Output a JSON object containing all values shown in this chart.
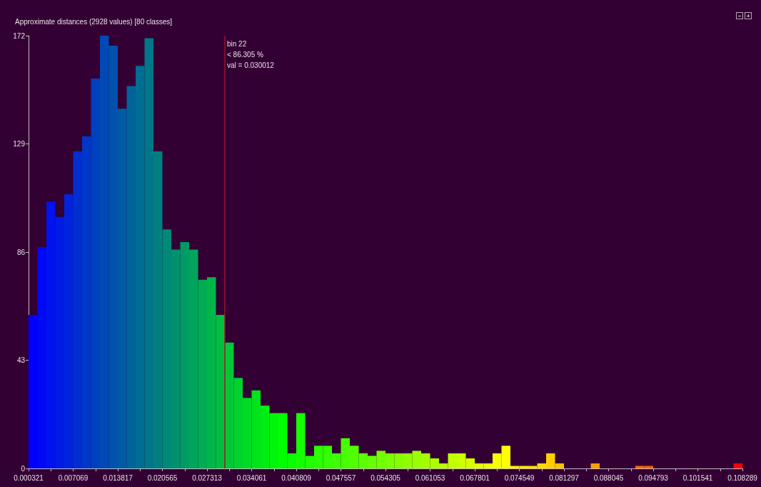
{
  "chart_data": {
    "type": "histogram",
    "title": "Approximate distances (2928 values) [80 classes]",
    "bins": [
      0.000321,
      0.001671,
      0.00302,
      0.00437,
      0.005719,
      0.007069,
      0.008419,
      0.009768,
      0.011118,
      0.012467,
      0.013817,
      0.015167,
      0.016516,
      0.017866,
      0.019215,
      0.020565,
      0.021915,
      0.023264,
      0.024614,
      0.025963,
      0.027313,
      0.028663,
      0.030012,
      0.031362,
      0.032711,
      0.034061,
      0.035411,
      0.03676,
      0.03811,
      0.039459,
      0.040809,
      0.042159,
      0.043508,
      0.044858,
      0.046207,
      0.047557,
      0.048907,
      0.050256,
      0.051606,
      0.052955,
      0.054305,
      0.055655,
      0.057004,
      0.058354,
      0.059703,
      0.061053,
      0.062403,
      0.063752,
      0.065102,
      0.066451,
      0.067801,
      0.069151,
      0.0705,
      0.07185,
      0.073199,
      0.074549,
      0.075899,
      0.077248,
      0.078598,
      0.079947,
      0.081297,
      0.082647,
      0.083996,
      0.085346,
      0.086695,
      0.088045,
      0.089395,
      0.090744,
      0.092094,
      0.093443,
      0.094793,
      0.096143,
      0.097492,
      0.098842,
      0.100191,
      0.101541,
      0.102891,
      0.10424,
      0.10559,
      0.106939,
      0.108289
    ],
    "values": [
      61,
      88,
      106,
      100,
      109,
      126,
      132,
      155,
      172,
      168,
      143,
      152,
      160,
      171,
      126,
      95,
      87,
      90,
      87,
      75,
      76,
      61,
      50,
      36,
      28,
      31,
      25,
      22,
      22,
      6,
      22,
      5,
      9,
      9,
      6,
      12,
      9,
      6,
      5,
      7,
      6,
      6,
      6,
      7,
      6,
      4,
      2,
      6,
      6,
      4,
      2,
      2,
      6,
      9,
      1,
      1,
      1,
      2,
      6,
      2,
      0,
      0,
      0,
      2,
      0,
      0,
      0,
      0,
      1,
      1,
      0,
      0,
      0,
      0,
      0,
      0,
      0,
      0,
      0,
      2
    ],
    "colors": [
      "#0000ff",
      "#0009f6",
      "#0012ed",
      "#001be4",
      "#0024db",
      "#002ed1",
      "#0037c8",
      "#0040bf",
      "#0049b6",
      "#0052ad",
      "#005ba4",
      "#00649b",
      "#006d92",
      "#007689",
      "#007f80",
      "#008976",
      "#00926d",
      "#009b64",
      "#00a45b",
      "#00ad52",
      "#00b649",
      "#00bf40",
      "#00c837",
      "#00d12e",
      "#00db24",
      "#00e41b",
      "#00ed12",
      "#00f609",
      "#00ff00",
      "#0aff00",
      "#14ff00",
      "#1fff00",
      "#29ff00",
      "#33ff00",
      "#3dff00",
      "#47ff00",
      "#52ff00",
      "#5cff00",
      "#66ff00",
      "#70ff00",
      "#7aff00",
      "#85ff00",
      "#8fff00",
      "#99ff00",
      "#a3ff00",
      "#adff00",
      "#b8ff00",
      "#c2ff00",
      "#ccff00",
      "#d6ff00",
      "#e0ff00",
      "#ebff00",
      "#f5ff00",
      "#ffff00",
      "#fff500",
      "#ffeb00",
      "#ffe200",
      "#ffd800",
      "#ffce00",
      "#ffc400",
      "#ffba00",
      "#ffb100",
      "#ffa700",
      "#ff9d00",
      "#ff9300",
      "#ff8900",
      "#ff8000",
      "#ff7600",
      "#ff6c00",
      "#ff6200",
      "#ff5800",
      "#ff4e00",
      "#ff4500",
      "#ff3b00",
      "#ff3100",
      "#ff2700",
      "#ff1d00",
      "#ff1400",
      "#ff0a00",
      "#ff0000"
    ],
    "xlim": [
      0.000321,
      0.108289
    ],
    "xticks": [
      0.000321,
      {
        "value": 0.003695,
        "label": null
      },
      0.007069,
      {
        "value": 0.010443,
        "label": null
      },
      0.013817,
      {
        "value": 0.017191,
        "label": null
      },
      0.020565,
      {
        "value": 0.023939,
        "label": null
      },
      0.027313,
      {
        "value": 0.030687,
        "label": null
      },
      0.034061,
      {
        "value": 0.037435,
        "label": null
      },
      0.040809,
      {
        "value": 0.044183,
        "label": null
      },
      0.047557,
      {
        "value": 0.050931,
        "label": null
      },
      0.054305,
      {
        "value": 0.057679,
        "label": null
      },
      0.061053,
      {
        "value": 0.064427,
        "label": null
      },
      0.067801,
      {
        "value": 0.071175,
        "label": null
      },
      0.074549,
      {
        "value": 0.077923,
        "label": null
      },
      0.081297,
      {
        "value": 0.084671,
        "label": null
      },
      0.088045,
      {
        "value": 0.091419,
        "label": null
      },
      0.094793,
      {
        "value": 0.098167,
        "label": null
      },
      0.101541,
      {
        "value": 0.104915,
        "label": null
      },
      0.108289
    ],
    "ylim": [
      0,
      172
    ],
    "yticks": [
      0,
      43,
      86,
      129,
      172
    ],
    "ref_lines": [
      {
        "axis": "x",
        "value": 0.030012,
        "label": "bin 22\n< 86.305 %\nval = 0.030012",
        "color": "#a01428"
      }
    ]
  }
}
